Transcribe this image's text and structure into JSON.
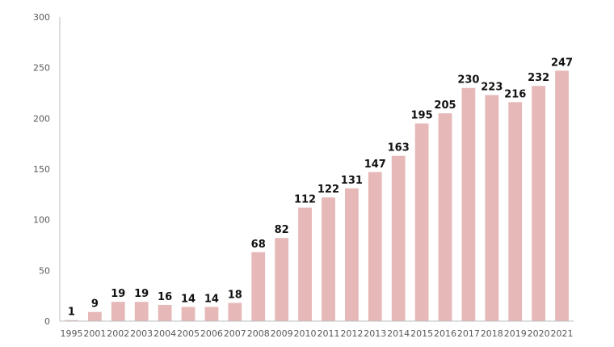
{
  "chart_data": {
    "type": "bar",
    "title": "",
    "xlabel": "",
    "ylabel": "",
    "categories": [
      "1995",
      "2001",
      "2002",
      "2003",
      "2004",
      "2005",
      "2006",
      "2007",
      "2008",
      "2009",
      "2010",
      "2011",
      "2012",
      "2013",
      "2014",
      "2015",
      "2016",
      "2017",
      "2018",
      "2019",
      "2020",
      "2021"
    ],
    "values": [
      1,
      9,
      19,
      19,
      16,
      14,
      14,
      18,
      68,
      82,
      112,
      122,
      131,
      147,
      163,
      195,
      205,
      230,
      223,
      216,
      232,
      247
    ],
    "ylim": [
      0,
      300
    ],
    "yticks": [
      0,
      50,
      100,
      150,
      200,
      250,
      300
    ],
    "grid": false,
    "legend": "none",
    "bar_color": "#e6b8b7",
    "axis_color": "#bfbfbf"
  }
}
